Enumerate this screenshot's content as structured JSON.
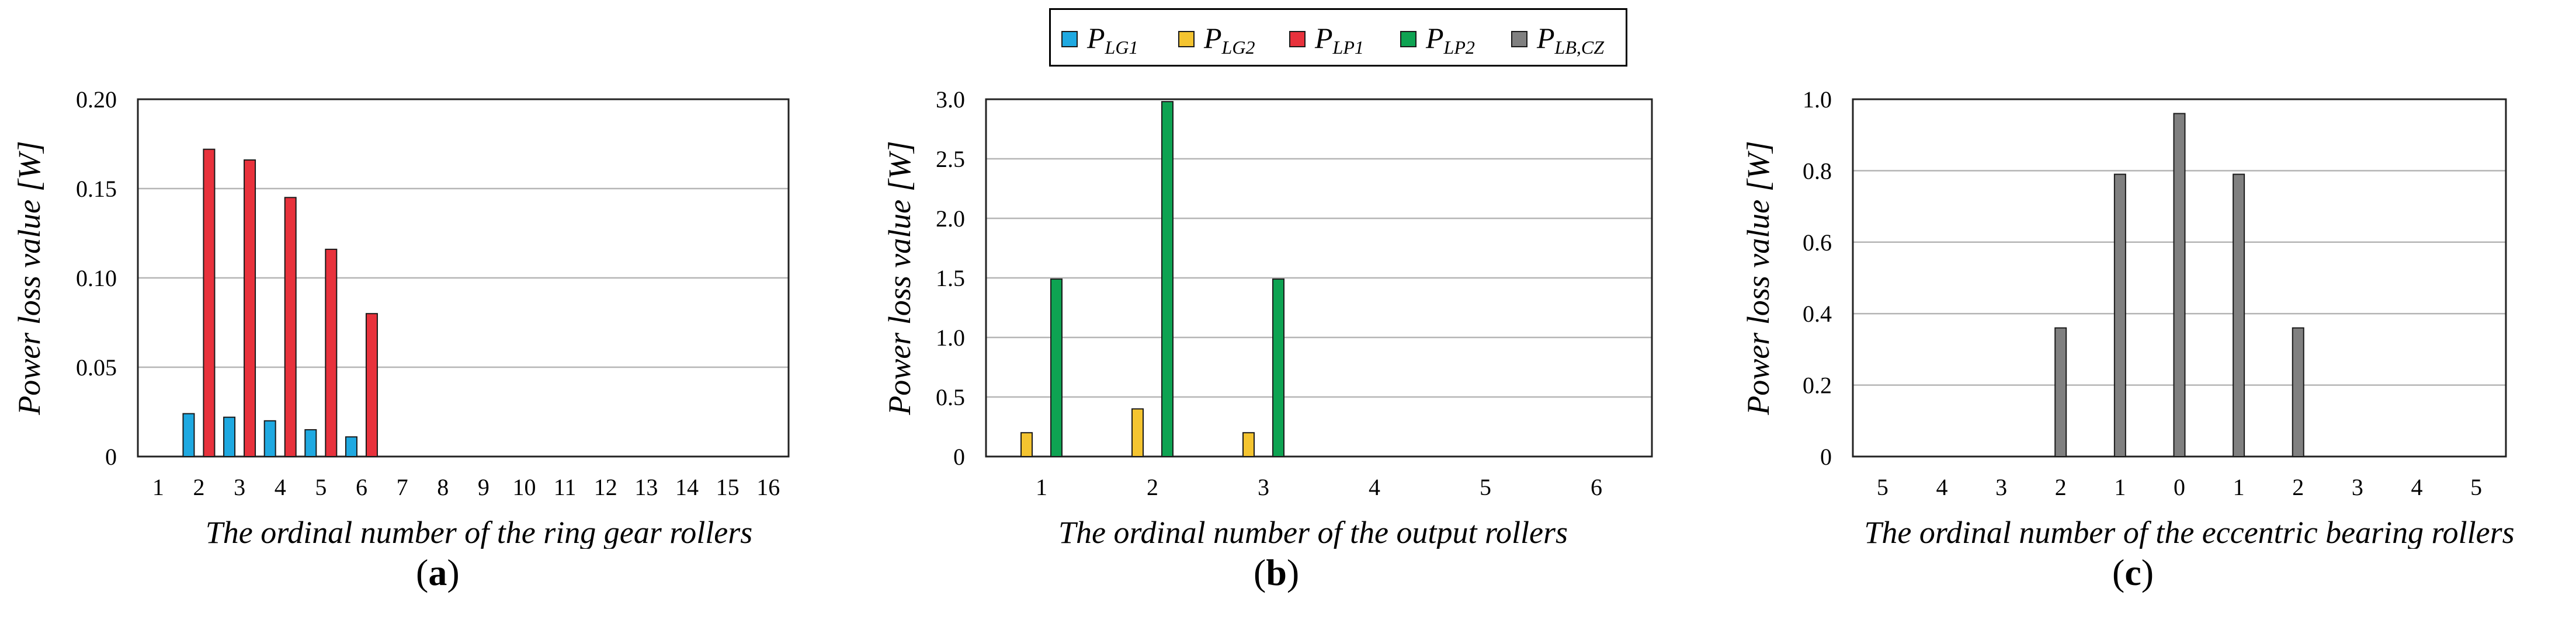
{
  "legend": [
    {
      "base": "P",
      "sub": "LG1",
      "color": "#1fa9e1"
    },
    {
      "base": "P",
      "sub": "LG2",
      "color": "#f4c430"
    },
    {
      "base": "P",
      "sub": "LP1",
      "color": "#e8323c"
    },
    {
      "base": "P",
      "sub": "LP2",
      "color": "#0ea352"
    },
    {
      "base": "P",
      "sub": "LB,CZ",
      "color": "#808080"
    }
  ],
  "chart_data": [
    {
      "type": "bar",
      "panel_label": "a",
      "ylabel": "Power loss value [W]",
      "xlabel": "The ordinal number of the ring gear rollers",
      "ylim": [
        0,
        0.2
      ],
      "yticks": [
        "0",
        "0.05",
        "0.10",
        "0.15",
        "0.20"
      ],
      "grid": true,
      "categories": [
        "1",
        "2",
        "3",
        "4",
        "5",
        "6",
        "7",
        "8",
        "9",
        "10",
        "11",
        "12",
        "13",
        "14",
        "15",
        "16"
      ],
      "series": [
        {
          "name": "PLG1",
          "color": "#1fa9e1",
          "values": [
            0,
            0.024,
            0.022,
            0.02,
            0.015,
            0.011,
            0,
            0,
            0,
            0,
            0,
            0,
            0,
            0,
            0,
            0
          ]
        },
        {
          "name": "PLP1",
          "color": "#e8323c",
          "values": [
            0,
            0.172,
            0.166,
            0.145,
            0.116,
            0.08,
            0,
            0,
            0,
            0,
            0,
            0,
            0,
            0,
            0,
            0
          ]
        }
      ]
    },
    {
      "type": "bar",
      "panel_label": "b",
      "ylabel": "Power loss value [W]",
      "xlabel": "The ordinal number of the output rollers",
      "ylim": [
        0,
        3.0
      ],
      "yticks": [
        "0",
        "0.5",
        "1.0",
        "1.5",
        "2.0",
        "2.5",
        "3.0"
      ],
      "grid": true,
      "categories": [
        "1",
        "2",
        "3",
        "4",
        "5",
        "6"
      ],
      "series": [
        {
          "name": "PLG2",
          "color": "#f4c430",
          "values": [
            0.2,
            0.4,
            0.2,
            0,
            0,
            0
          ]
        },
        {
          "name": "PLP2",
          "color": "#0ea352",
          "values": [
            1.49,
            2.98,
            1.49,
            0,
            0,
            0
          ]
        }
      ]
    },
    {
      "type": "bar",
      "panel_label": "c",
      "ylabel": "Power loss value [W]",
      "xlabel": "The ordinal number of the eccentric bearing rollers",
      "ylim": [
        0,
        1.0
      ],
      "yticks": [
        "0",
        "0.2",
        "0.4",
        "0.6",
        "0.8",
        "1.0"
      ],
      "grid": true,
      "categories": [
        "5",
        "4",
        "3",
        "2",
        "1",
        "0",
        "1",
        "2",
        "3",
        "4",
        "5"
      ],
      "series": [
        {
          "name": "PLB,CZ",
          "color": "#808080",
          "values": [
            0,
            0,
            0,
            0.36,
            0.79,
            0.96,
            0.79,
            0.36,
            0,
            0,
            0
          ]
        }
      ]
    }
  ]
}
